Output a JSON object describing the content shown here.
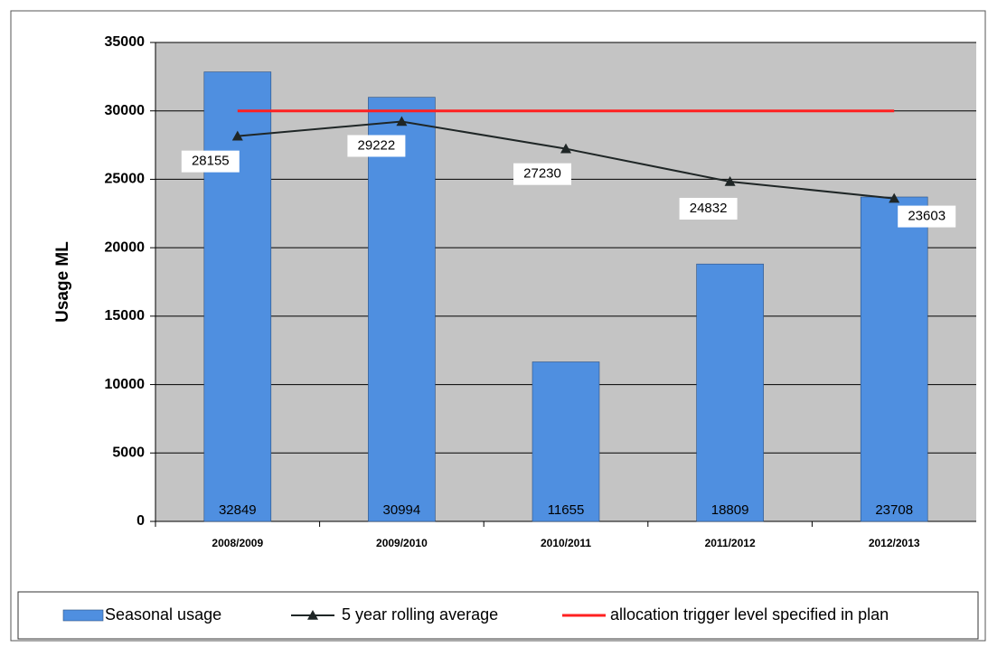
{
  "chart_data": {
    "type": "bar",
    "y_label": "Usage ML",
    "categories": [
      "2008/2009",
      "2009/2010",
      "2010/2011",
      "2011/2012",
      "2012/2013"
    ],
    "series": [
      {
        "name": "Seasonal usage",
        "type": "bar",
        "color": "#4f8fe0",
        "values": [
          32849,
          30994,
          11655,
          18809,
          23708
        ],
        "data_labels": true
      },
      {
        "name": "5 year rolling average",
        "type": "line",
        "marker": "triangle",
        "color": "#1f2626",
        "values": [
          28155,
          29222,
          27230,
          24832,
          23603
        ],
        "data_labels": true
      },
      {
        "name": "allocation trigger level specified in plan",
        "type": "line",
        "color": "#ff2020",
        "values": [
          30000,
          30000,
          30000,
          30000,
          30000
        ],
        "data_labels": false
      }
    ],
    "ylim": [
      0,
      35000
    ],
    "yticks": [
      0,
      5000,
      10000,
      15000,
      20000,
      25000,
      30000,
      35000
    ],
    "grid": true,
    "legend": "bottom"
  }
}
